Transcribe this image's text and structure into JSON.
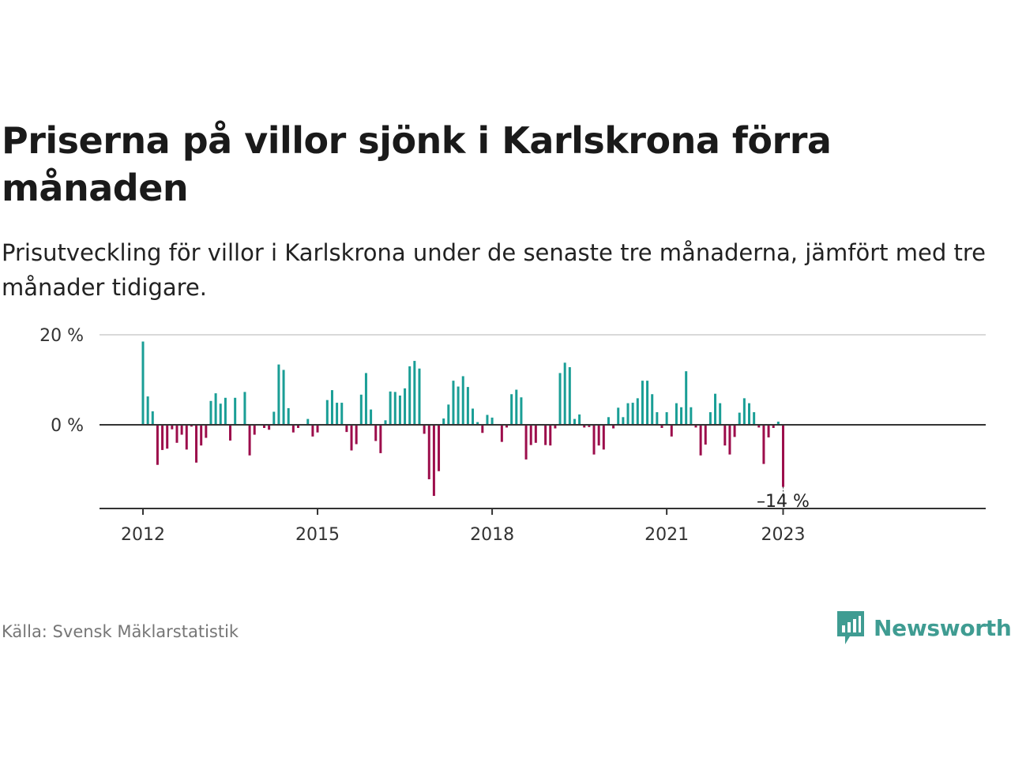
{
  "title": "Priserna på villor sjönk i Karlskrona förra månaden",
  "subtitle": "Prisutveckling för villor i Karlskrona under de senaste tre månaderna, jämfört med tre månader tidigare.",
  "source": "Källa: Svensk Mäklarstatistik",
  "brand": {
    "name": "Newsworthy",
    "icon": "newsworthy-logo-icon",
    "color": "#3f9c92"
  },
  "colors": {
    "positive": "#1a9e96",
    "negative": "#9c0d4b",
    "axis": "#333333",
    "grid": "#d9d9d9"
  },
  "chart_data": {
    "type": "bar",
    "start": "2012-01",
    "unit": "%",
    "yticks": [
      0,
      20
    ],
    "ytick_labels": [
      "0 %",
      "20 %"
    ],
    "ylim": [
      -19,
      20
    ],
    "xticks": [
      "2012-01",
      "2015-01",
      "2018-01",
      "2021-01",
      "2023-01"
    ],
    "xtick_labels": [
      "2012",
      "2015",
      "2018",
      "2021",
      "2023"
    ],
    "grid": true,
    "annotation": {
      "label": "–14 %",
      "x": "2023-01"
    },
    "values": [
      18.5,
      6.3,
      3.0,
      -8.9,
      -5.6,
      -5.3,
      -1.0,
      -4.0,
      -2.2,
      -5.5,
      -0.4,
      -8.4,
      -4.6,
      -2.9,
      5.3,
      7.0,
      4.7,
      6.0,
      -3.5,
      6.0,
      0,
      7.3,
      -6.8,
      -2.2,
      0,
      -0.7,
      -1.1,
      2.9,
      13.4,
      12.2,
      3.7,
      -1.7,
      -0.7,
      0,
      1.3,
      -2.6,
      -1.7,
      0,
      5.5,
      7.7,
      4.9,
      4.9,
      -1.6,
      -5.7,
      -4.3,
      6.7,
      11.5,
      3.4,
      -3.6,
      -6.3,
      1.0,
      7.4,
      7.3,
      6.5,
      8.1,
      13.0,
      14.2,
      12.5,
      -2.0,
      -12.1,
      -15.8,
      -10.3,
      1.4,
      4.5,
      9.8,
      8.5,
      10.8,
      8.4,
      3.6,
      0.6,
      -1.8,
      2.2,
      1.6,
      0,
      -3.8,
      -0.6,
      6.8,
      7.8,
      6.1,
      -7.7,
      -4.5,
      -4.0,
      0,
      -4.5,
      -4.6,
      -0.8,
      11.5,
      13.8,
      12.8,
      1.3,
      2.3,
      -0.6,
      -0.5,
      -6.6,
      -4.6,
      -5.5,
      1.7,
      -0.8,
      3.8,
      1.7,
      4.8,
      4.9,
      5.9,
      9.8,
      9.8,
      6.8,
      2.8,
      -0.7,
      2.8,
      -2.6,
      4.8,
      3.9,
      11.9,
      3.9,
      -0.6,
      -6.8,
      -4.4,
      2.8,
      6.9,
      4.8,
      -4.6,
      -6.6,
      -2.7,
      2.7,
      5.9,
      4.8,
      2.8,
      -0.6,
      -8.7,
      -2.8,
      -0.7,
      0.7,
      -13.8
    ]
  }
}
